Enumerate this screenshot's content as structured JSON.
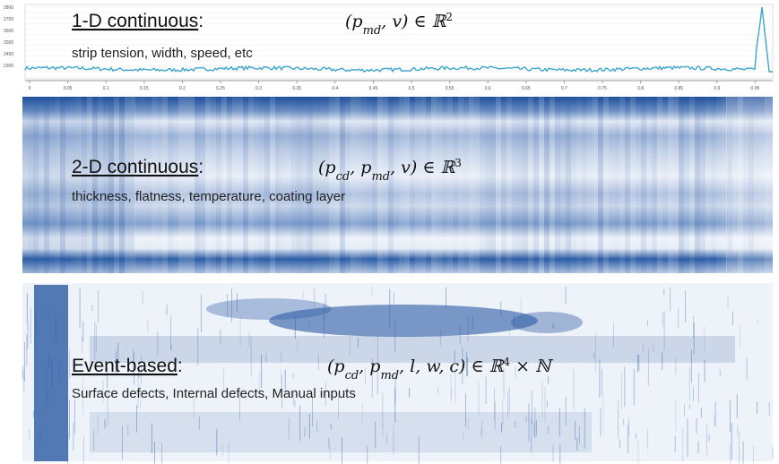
{
  "panels": [
    {
      "heading": "1-D continuous",
      "colon": ":",
      "formula": [
        "(p",
        "md",
        ", v) ∈ ℝ",
        "2"
      ],
      "description": "strip tension, width, speed, etc",
      "x_tick_labels": [
        "0",
        "0.05",
        "0.1",
        "0.15",
        "0.2",
        "0.25",
        "0.3",
        "0.35",
        "0.4",
        "0.45",
        "0.5",
        "0.55",
        "0.6",
        "0.65",
        "0.7",
        "0.75",
        "0.8",
        "0.85",
        "0.9",
        "0.95"
      ],
      "y_tick_labels": [
        "2800",
        "2700",
        "2600",
        "2500",
        "2400",
        "2300"
      ]
    },
    {
      "heading": "2-D continuous",
      "colon": ":",
      "formula": [
        "(p",
        "cd",
        ", p",
        "md",
        ", v) ∈ ℝ",
        "3"
      ],
      "description": "thickness, flatness, temperature, coating layer"
    },
    {
      "heading": "Event-based",
      "colon": ":",
      "formula": [
        "(p",
        "cd",
        ", p",
        "md",
        ", l, w, c) ∈ ℝ",
        "4",
        " × ℕ"
      ],
      "description": "Surface defects, Internal defects, Manual inputs"
    }
  ]
}
